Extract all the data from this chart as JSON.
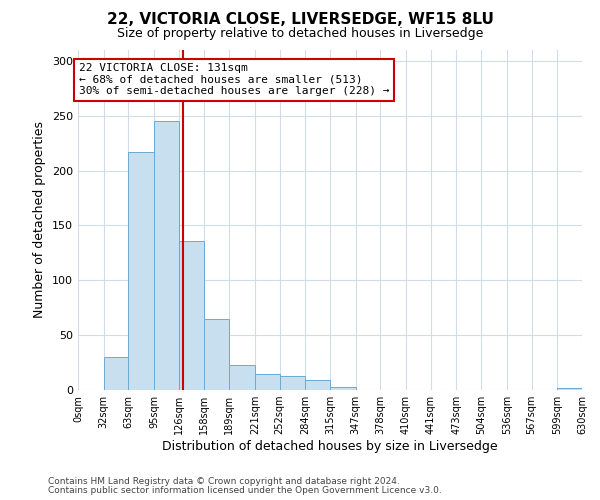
{
  "title": "22, VICTORIA CLOSE, LIVERSEDGE, WF15 8LU",
  "subtitle": "Size of property relative to detached houses in Liversedge",
  "xlabel": "Distribution of detached houses by size in Liversedge",
  "ylabel": "Number of detached properties",
  "bin_edges": [
    0,
    32,
    63,
    95,
    126,
    158,
    189,
    221,
    252,
    284,
    315,
    347,
    378,
    410,
    441,
    473,
    504,
    536,
    567,
    599,
    630
  ],
  "bin_labels": [
    "0sqm",
    "32sqm",
    "63sqm",
    "95sqm",
    "126sqm",
    "158sqm",
    "189sqm",
    "221sqm",
    "252sqm",
    "284sqm",
    "315sqm",
    "347sqm",
    "378sqm",
    "410sqm",
    "441sqm",
    "473sqm",
    "504sqm",
    "536sqm",
    "567sqm",
    "599sqm",
    "630sqm"
  ],
  "counts": [
    0,
    30,
    217,
    245,
    136,
    65,
    23,
    15,
    13,
    9,
    3,
    0,
    0,
    0,
    0,
    0,
    0,
    0,
    0,
    2
  ],
  "bar_color": "#c8dff0",
  "bar_edge_color": "#6aaad4",
  "vline_x": 131,
  "vline_color": "#cc0000",
  "ylim": [
    0,
    310
  ],
  "yticks": [
    0,
    50,
    100,
    150,
    200,
    250,
    300
  ],
  "annotation_title": "22 VICTORIA CLOSE: 131sqm",
  "annotation_line1": "← 68% of detached houses are smaller (513)",
  "annotation_line2": "30% of semi-detached houses are larger (228) →",
  "annotation_box_color": "#cc0000",
  "footer_line1": "Contains HM Land Registry data © Crown copyright and database right 2024.",
  "footer_line2": "Contains public sector information licensed under the Open Government Licence v3.0.",
  "background_color": "#ffffff",
  "grid_color": "#d0dce8"
}
